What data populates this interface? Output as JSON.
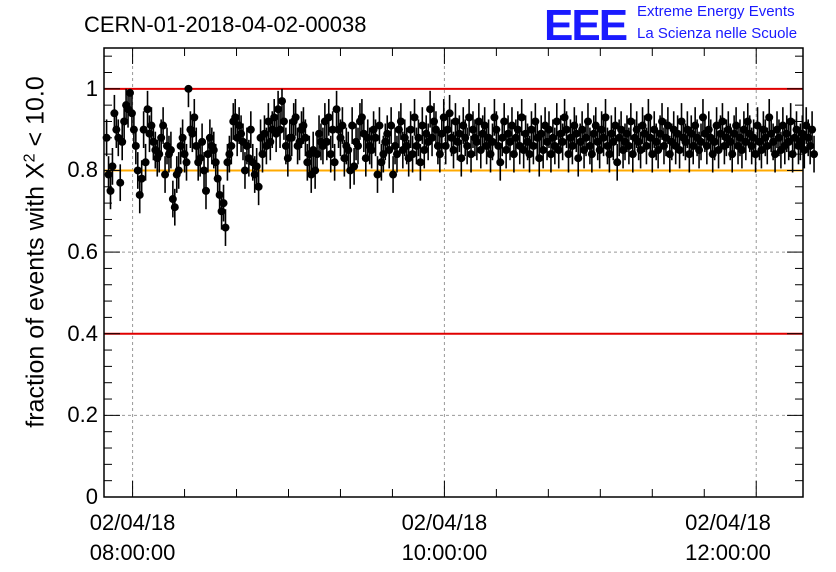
{
  "header": {
    "title": "CERN-01-2018-04-02-00038",
    "logo_letters": "EEE",
    "logo_line1": "Extreme Energy Events",
    "logo_line2": "La Scienza nelle Scuole",
    "logo_color": "#1a1aff"
  },
  "chart_data": {
    "type": "scatter",
    "ylabel_main": "fraction of events with X",
    "ylabel_sup": "2",
    "ylabel_tail": " < 10.0",
    "ylim": [
      0,
      1.1
    ],
    "xlim": [
      "2018-04-02 07:49",
      "2018-04-02 12:18"
    ],
    "grid": true,
    "yticks": [
      "0",
      "0.2",
      "0.4",
      "0.6",
      "0.8",
      "1"
    ],
    "xticks": [
      {
        "date": "02/04/18",
        "time": "08:00:00",
        "t": "2018-04-02 08:00"
      },
      {
        "date": "02/04/18",
        "time": "10:00:00",
        "t": "2018-04-02 10:00"
      },
      {
        "date": "02/04/18",
        "time": "12:00:00",
        "t": "2018-04-02 12:00"
      }
    ],
    "reference_lines": [
      {
        "y": 1.0,
        "color": "#e00000"
      },
      {
        "y": 0.8,
        "color": "#ffaa00"
      },
      {
        "y": 0.4,
        "color": "#e00000"
      }
    ],
    "series": [
      {
        "marker_color": "#000000",
        "start": "2018-04-02 07:50",
        "step_minutes": 0.75,
        "values": [
          0.88,
          0.79,
          0.75,
          0.81,
          0.94,
          0.9,
          0.88,
          0.77,
          0.87,
          0.92,
          0.96,
          0.95,
          0.99,
          0.94,
          0.9,
          0.86,
          0.8,
          0.74,
          0.78,
          0.9,
          0.82,
          0.95,
          0.89,
          0.91,
          0.87,
          0.85,
          0.83,
          0.84,
          0.88,
          0.91,
          0.79,
          0.86,
          0.84,
          0.85,
          0.73,
          0.71,
          0.79,
          0.8,
          0.86,
          0.88,
          0.84,
          0.82,
          1.0,
          0.9,
          0.89,
          0.93,
          0.86,
          0.82,
          0.83,
          0.87,
          0.8,
          0.75,
          0.84,
          0.88,
          0.86,
          0.85,
          0.82,
          0.78,
          0.74,
          0.7,
          0.72,
          0.66,
          0.82,
          0.84,
          0.86,
          0.92,
          0.93,
          0.88,
          0.91,
          0.89,
          0.87,
          0.8,
          0.86,
          0.83,
          0.9,
          0.82,
          0.79,
          0.81,
          0.76,
          0.88,
          0.84,
          0.89,
          0.86,
          0.92,
          0.87,
          0.9,
          0.93,
          0.89,
          0.95,
          0.9,
          0.97,
          0.92,
          0.86,
          0.83,
          0.88,
          0.88,
          0.92,
          0.93,
          0.86,
          0.87,
          0.9,
          0.91,
          0.88,
          0.82,
          0.84,
          0.79,
          0.85,
          0.8,
          0.84,
          0.89,
          0.87,
          0.86,
          0.92,
          0.87,
          0.93,
          0.84,
          0.9,
          0.82,
          0.95,
          0.9,
          0.88,
          0.91,
          0.83,
          0.86,
          0.85,
          0.8,
          0.91,
          0.81,
          0.87,
          0.86,
          0.92,
          0.93,
          0.89,
          0.83,
          0.88,
          0.86,
          0.85,
          0.9,
          0.88,
          0.79,
          0.91,
          0.82,
          0.84,
          0.87,
          0.89,
          0.85,
          0.91,
          0.79,
          0.86,
          0.84,
          0.9,
          0.92,
          0.85,
          0.88,
          0.86,
          0.83,
          0.9,
          0.84,
          0.93,
          0.86,
          0.88,
          0.82,
          0.91,
          0.85,
          0.89,
          0.87,
          0.95,
          0.88,
          0.92,
          0.9,
          0.86,
          0.84,
          0.89,
          0.93,
          0.86,
          0.9,
          0.94,
          0.88,
          0.85,
          0.92,
          0.87,
          0.89,
          0.83,
          0.91,
          0.88,
          0.86,
          0.93,
          0.84,
          0.9,
          0.88,
          0.87,
          0.92,
          0.85,
          0.89,
          0.91,
          0.86,
          0.88,
          0.84,
          0.87,
          0.93,
          0.9,
          0.86,
          0.82,
          0.88,
          0.92,
          0.85,
          0.89,
          0.87,
          0.91,
          0.84,
          0.88,
          0.9,
          0.86,
          0.93,
          0.85,
          0.89,
          0.87,
          0.84,
          0.9,
          0.86,
          0.92,
          0.88,
          0.83,
          0.89,
          0.85,
          0.91,
          0.87,
          0.9,
          0.84,
          0.88,
          0.86,
          0.92,
          0.85,
          0.89,
          0.87,
          0.93,
          0.9,
          0.84,
          0.88,
          0.86,
          0.91,
          0.89,
          0.83,
          0.87,
          0.9,
          0.85,
          0.88,
          0.92,
          0.86,
          0.84,
          0.89,
          0.91,
          0.87,
          0.85,
          0.9,
          0.88,
          0.93,
          0.86,
          0.84,
          0.89,
          0.87,
          0.91,
          0.82,
          0.88,
          0.9,
          0.85,
          0.87,
          0.89,
          0.86,
          0.92,
          0.84,
          0.88,
          0.9,
          0.87,
          0.85,
          0.91,
          0.89,
          0.86,
          0.93,
          0.88,
          0.84,
          0.9,
          0.87,
          0.85,
          0.89,
          0.92,
          0.86,
          0.88,
          0.91,
          0.84,
          0.87,
          0.9,
          0.86,
          0.89,
          0.85,
          0.92,
          0.88,
          0.87,
          0.9,
          0.84,
          0.89,
          0.86,
          0.91,
          0.88,
          0.85,
          0.87,
          0.93,
          0.89,
          0.86,
          0.9,
          0.88,
          0.84,
          0.87,
          0.91,
          0.85,
          0.89,
          0.92,
          0.86,
          0.88,
          0.9,
          0.87,
          0.84,
          0.89,
          0.91,
          0.86,
          0.88,
          0.85,
          0.9,
          0.87,
          0.92,
          0.89,
          0.86,
          0.88,
          0.84,
          0.91,
          0.87,
          0.85,
          0.9,
          0.88,
          0.86,
          0.93,
          0.89,
          0.87,
          0.84,
          0.9,
          0.88,
          0.85,
          0.91,
          0.86,
          0.89,
          0.87,
          0.92,
          0.84,
          0.88,
          0.9,
          0.86,
          0.87,
          0.89,
          0.85,
          0.91,
          0.88,
          0.86,
          0.9,
          0.84
        ],
        "errors": 0.045
      }
    ]
  }
}
